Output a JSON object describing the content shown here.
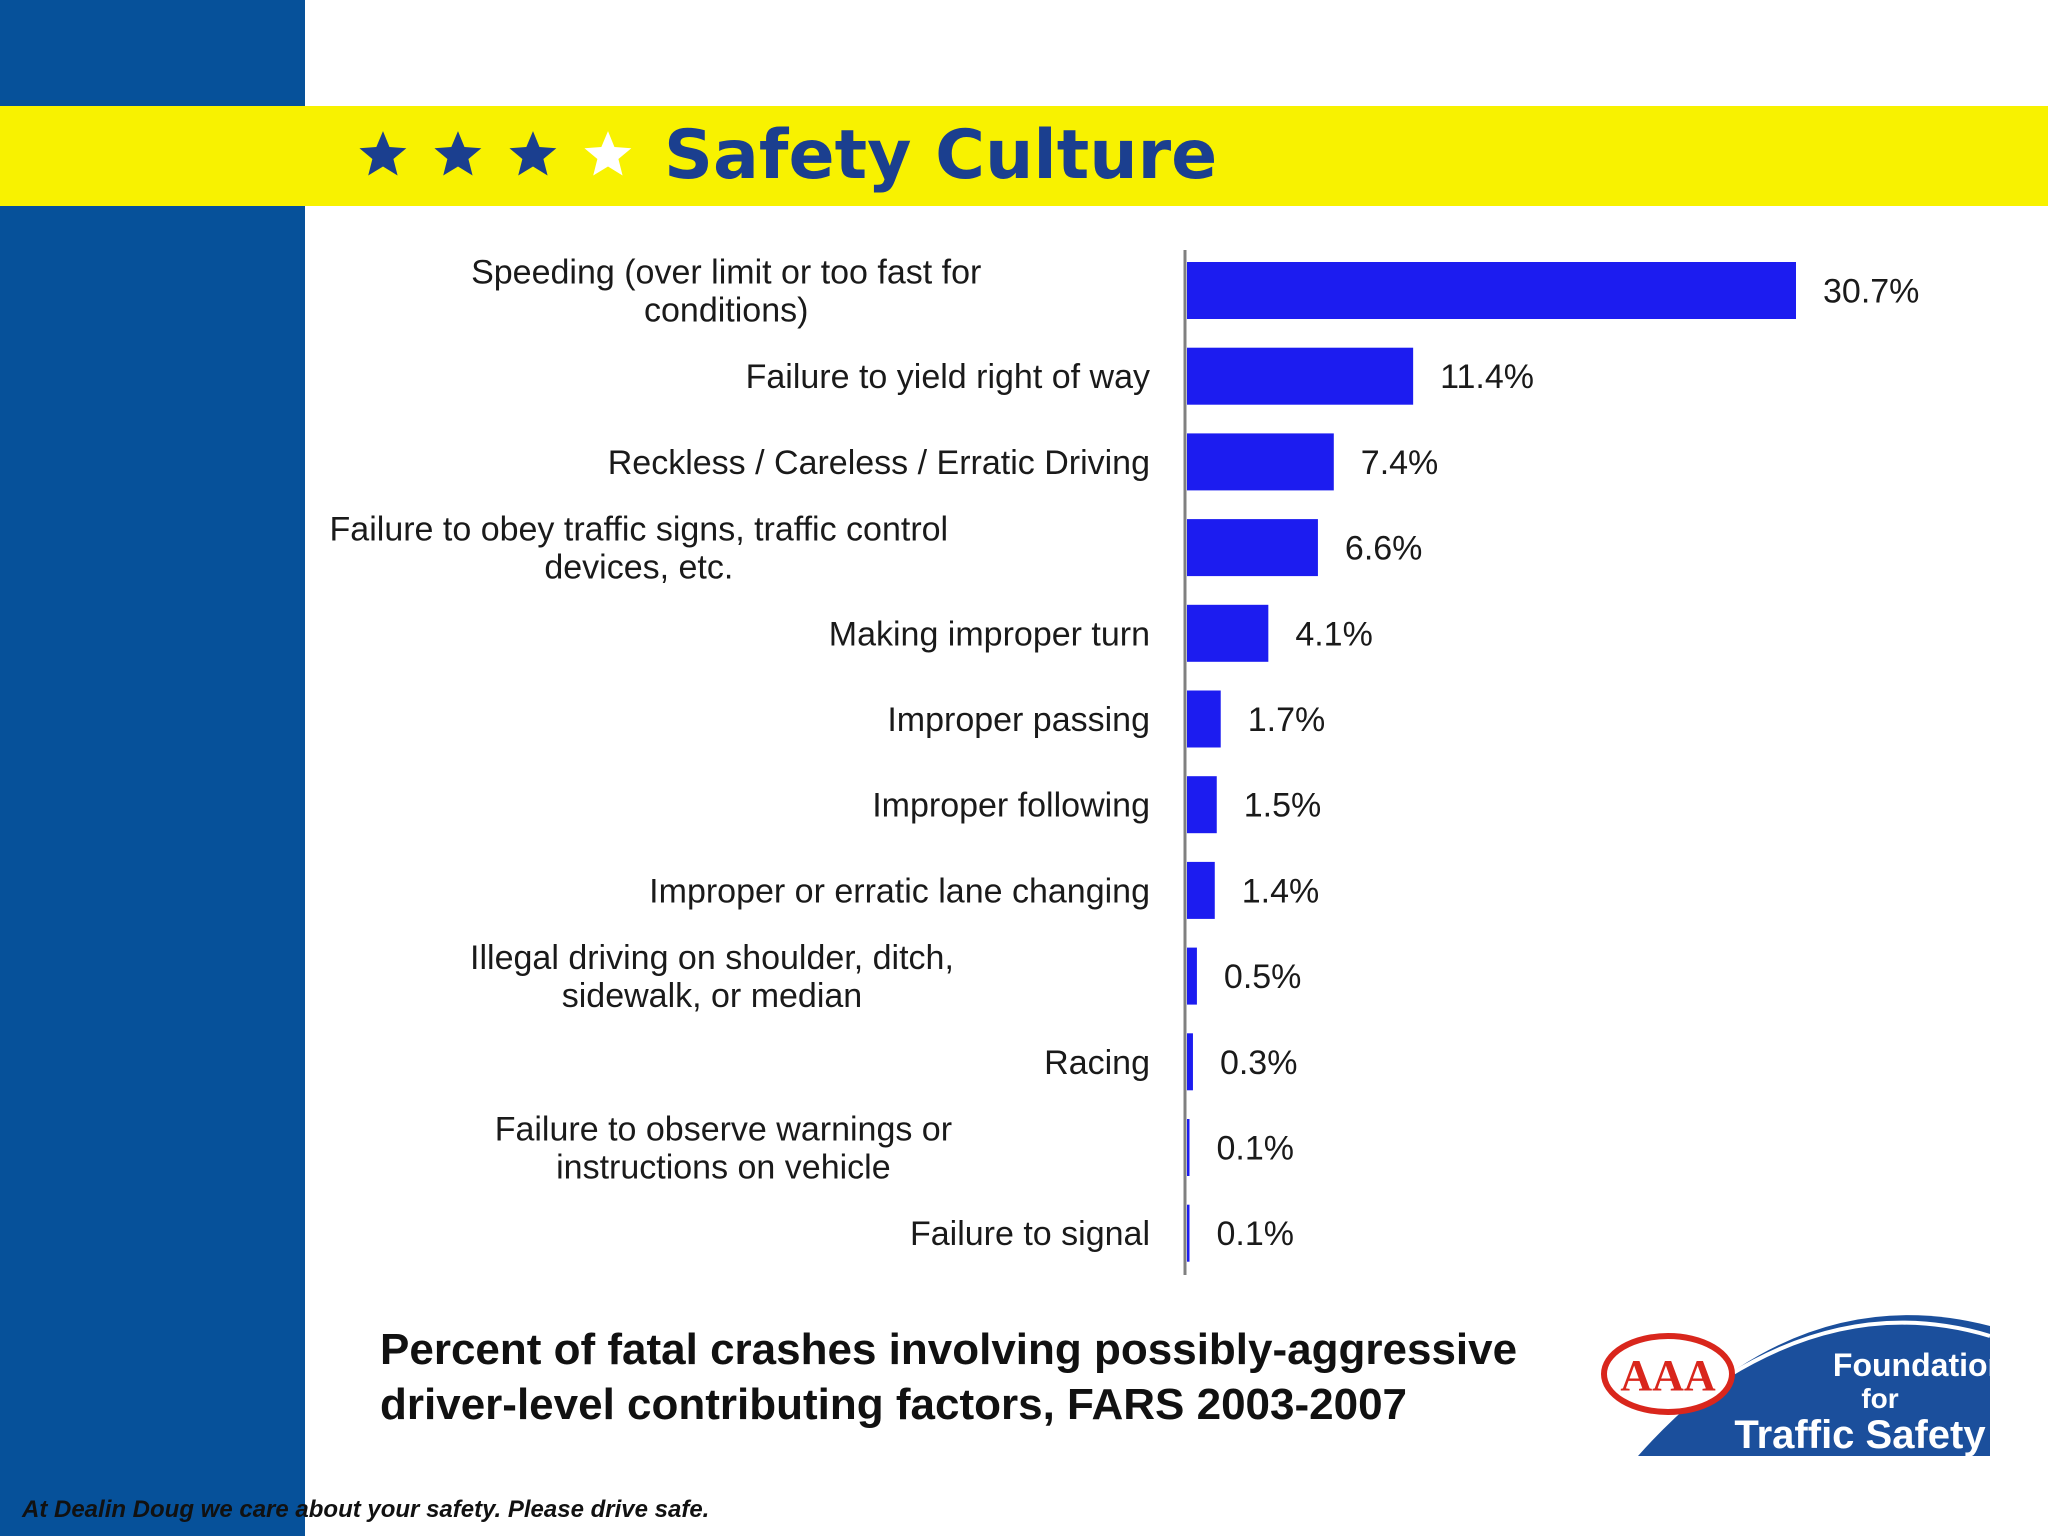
{
  "header": {
    "title": "Safety Culture",
    "stars": [
      {
        "icon": "star-icon",
        "color": "#1b3f8f"
      },
      {
        "icon": "star-icon",
        "color": "#1b3f8f"
      },
      {
        "icon": "star-icon",
        "color": "#1b3f8f"
      },
      {
        "icon": "star-icon",
        "color": "#ffffff"
      }
    ]
  },
  "colors": {
    "band_blue": "#06519a",
    "header_yellow": "#f8f200",
    "bar_fill": "#1c1cf0",
    "title_blue": "#1b3f8f"
  },
  "chart_data": {
    "type": "bar",
    "orientation": "horizontal",
    "categories": [
      [
        "Speeding (over limit or too fast for",
        "conditions)"
      ],
      [
        "Failure to yield right of way"
      ],
      [
        "Reckless / Careless / Erratic Driving"
      ],
      [
        "Failure to obey traffic signs, traffic control",
        "devices, etc."
      ],
      [
        "Making improper turn"
      ],
      [
        "Improper passing"
      ],
      [
        "Improper following"
      ],
      [
        "Improper or erratic lane changing"
      ],
      [
        "Illegal driving on shoulder, ditch,",
        "sidewalk, or median"
      ],
      [
        "Racing"
      ],
      [
        "Failure to observe warnings or",
        "instructions on vehicle"
      ],
      [
        "Failure to signal"
      ]
    ],
    "values": [
      30.7,
      11.4,
      7.4,
      6.6,
      4.1,
      1.7,
      1.5,
      1.4,
      0.5,
      0.3,
      0.1,
      0.1
    ],
    "value_labels": [
      "30.7%",
      "11.4%",
      "7.4%",
      "6.6%",
      "4.1%",
      "1.7%",
      "1.5%",
      "1.4%",
      "0.5%",
      "0.3%",
      "0.1%",
      "0.1%"
    ],
    "unit": "%",
    "xlim": [
      0,
      30.7
    ],
    "grid": false,
    "legend": false
  },
  "caption": "Percent of fatal crashes involving  possibly-aggressive driver-level contributing factors, FARS 2003-2007",
  "footer": "At  Dealin Doug we care about your safety.  Please drive safe.",
  "logo": {
    "icon": "aaa-foundation-logo",
    "aaa_text": "AAA",
    "lines": [
      "Foundation",
      "for",
      "Traffic Safety"
    ]
  }
}
